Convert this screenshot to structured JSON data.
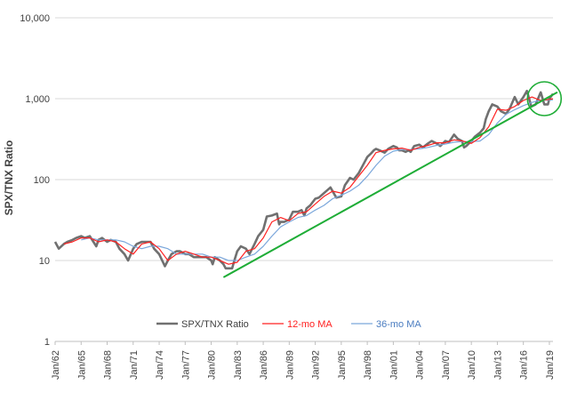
{
  "chart_data": {
    "type": "line",
    "ylabel": "SPX/TNX Ratio",
    "yscale": "log",
    "ylim": [
      1,
      10000
    ],
    "y_ticks": [
      {
        "value": 1,
        "label": "1"
      },
      {
        "value": 10,
        "label": "10"
      },
      {
        "value": 100,
        "label": "100"
      },
      {
        "value": 1000,
        "label": "1,000"
      },
      {
        "value": 10000,
        "label": "10,000"
      }
    ],
    "xlim": [
      "1962-01",
      "2019-06"
    ],
    "x_ticks": [
      "Jan/62",
      "Jan/65",
      "Jan/68",
      "Jan/71",
      "Jan/74",
      "Jan/77",
      "Jan/80",
      "Jan/83",
      "Jan/86",
      "Jan/89",
      "Jan/92",
      "Jan/95",
      "Jan/98",
      "Jan/01",
      "Jan/04",
      "Jan/07",
      "Jan/10",
      "Jan/13",
      "Jan/16",
      "Jan/19"
    ],
    "grid": "horizontal",
    "legend": "bottom-center",
    "series": [
      {
        "name": "SPX/TNX Ratio",
        "color": "#707070",
        "points": [
          [
            "1962-01",
            17
          ],
          [
            "1962-06",
            14
          ],
          [
            "1963-01",
            16
          ],
          [
            "1963-06",
            17
          ],
          [
            "1964-01",
            18
          ],
          [
            "1964-06",
            19
          ],
          [
            "1965-01",
            20
          ],
          [
            "1965-06",
            19
          ],
          [
            "1966-01",
            20
          ],
          [
            "1966-06",
            17
          ],
          [
            "1966-10",
            15
          ],
          [
            "1967-01",
            18
          ],
          [
            "1967-06",
            19
          ],
          [
            "1968-01",
            17
          ],
          [
            "1968-06",
            18
          ],
          [
            "1969-01",
            17
          ],
          [
            "1969-06",
            14
          ],
          [
            "1970-01",
            12
          ],
          [
            "1970-06",
            10
          ],
          [
            "1971-01",
            14
          ],
          [
            "1971-06",
            16
          ],
          [
            "1972-01",
            17
          ],
          [
            "1972-06",
            17
          ],
          [
            "1973-01",
            17
          ],
          [
            "1973-06",
            14
          ],
          [
            "1974-01",
            12
          ],
          [
            "1974-09",
            8.5
          ],
          [
            "1975-01",
            10
          ],
          [
            "1975-06",
            12
          ],
          [
            "1976-01",
            13
          ],
          [
            "1976-06",
            13
          ],
          [
            "1977-01",
            12
          ],
          [
            "1977-06",
            12
          ],
          [
            "1978-01",
            11
          ],
          [
            "1978-06",
            11
          ],
          [
            "1979-01",
            11
          ],
          [
            "1979-06",
            11
          ],
          [
            "1980-01",
            10
          ],
          [
            "1980-03",
            9
          ],
          [
            "1980-06",
            11
          ],
          [
            "1981-01",
            10
          ],
          [
            "1981-06",
            9
          ],
          [
            "1981-09",
            8
          ],
          [
            "1982-01",
            8
          ],
          [
            "1982-06",
            8
          ],
          [
            "1982-09",
            10
          ],
          [
            "1983-01",
            13
          ],
          [
            "1983-06",
            15
          ],
          [
            "1984-01",
            14
          ],
          [
            "1984-06",
            12
          ],
          [
            "1985-01",
            16
          ],
          [
            "1985-06",
            20
          ],
          [
            "1986-01",
            24
          ],
          [
            "1986-06",
            35
          ],
          [
            "1987-01",
            36
          ],
          [
            "1987-08",
            38
          ],
          [
            "1987-11",
            28
          ],
          [
            "1988-01",
            30
          ],
          [
            "1988-06",
            30
          ],
          [
            "1989-01",
            32
          ],
          [
            "1989-06",
            40
          ],
          [
            "1990-01",
            40
          ],
          [
            "1990-06",
            42
          ],
          [
            "1990-10",
            36
          ],
          [
            "1991-01",
            44
          ],
          [
            "1991-06",
            48
          ],
          [
            "1992-01",
            58
          ],
          [
            "1992-06",
            60
          ],
          [
            "1993-01",
            68
          ],
          [
            "1993-10",
            80
          ],
          [
            "1994-06",
            60
          ],
          [
            "1995-01",
            62
          ],
          [
            "1995-06",
            85
          ],
          [
            "1996-01",
            105
          ],
          [
            "1996-06",
            100
          ],
          [
            "1997-01",
            120
          ],
          [
            "1997-06",
            145
          ],
          [
            "1998-01",
            190
          ],
          [
            "1998-06",
            210
          ],
          [
            "1998-10",
            230
          ],
          [
            "1999-01",
            240
          ],
          [
            "1999-06",
            230
          ],
          [
            "2000-01",
            215
          ],
          [
            "2000-06",
            240
          ],
          [
            "2001-01",
            260
          ],
          [
            "2001-06",
            250
          ],
          [
            "2001-09",
            230
          ],
          [
            "2002-01",
            230
          ],
          [
            "2002-06",
            220
          ],
          [
            "2002-10",
            230
          ],
          [
            "2003-01",
            220
          ],
          [
            "2003-06",
            260
          ],
          [
            "2004-01",
            270
          ],
          [
            "2004-06",
            250
          ],
          [
            "2005-01",
            280
          ],
          [
            "2005-06",
            300
          ],
          [
            "2006-01",
            280
          ],
          [
            "2006-06",
            260
          ],
          [
            "2007-01",
            300
          ],
          [
            "2007-06",
            290
          ],
          [
            "2008-01",
            360
          ],
          [
            "2008-06",
            320
          ],
          [
            "2008-12",
            300
          ],
          [
            "2009-03",
            250
          ],
          [
            "2009-06",
            260
          ],
          [
            "2010-01",
            300
          ],
          [
            "2010-06",
            340
          ],
          [
            "2011-01",
            380
          ],
          [
            "2011-06",
            430
          ],
          [
            "2011-09",
            560
          ],
          [
            "2012-01",
            700
          ],
          [
            "2012-06",
            850
          ],
          [
            "2013-01",
            800
          ],
          [
            "2013-06",
            700
          ],
          [
            "2014-01",
            650
          ],
          [
            "2014-06",
            750
          ],
          [
            "2015-01",
            1050
          ],
          [
            "2015-06",
            850
          ],
          [
            "2016-01",
            1050
          ],
          [
            "2016-06",
            1250
          ],
          [
            "2016-12",
            800
          ],
          [
            "2017-06",
            850
          ],
          [
            "2018-01",
            1200
          ],
          [
            "2018-06",
            850
          ],
          [
            "2018-11",
            850
          ],
          [
            "2019-01",
            1000
          ],
          [
            "2019-06",
            1150
          ]
        ]
      },
      {
        "name": "12-mo MA",
        "color": "#ff2020",
        "points": [
          [
            "1963-01",
            16
          ],
          [
            "1964-01",
            17
          ],
          [
            "1965-01",
            19
          ],
          [
            "1966-01",
            19
          ],
          [
            "1967-01",
            17
          ],
          [
            "1968-01",
            18
          ],
          [
            "1969-01",
            17
          ],
          [
            "1970-01",
            14
          ],
          [
            "1971-01",
            12
          ],
          [
            "1972-01",
            16
          ],
          [
            "1973-01",
            17
          ],
          [
            "1974-01",
            14
          ],
          [
            "1975-01",
            10
          ],
          [
            "1976-01",
            12
          ],
          [
            "1977-01",
            13
          ],
          [
            "1978-01",
            12
          ],
          [
            "1979-01",
            11
          ],
          [
            "1980-01",
            11
          ],
          [
            "1981-01",
            10
          ],
          [
            "1982-01",
            9
          ],
          [
            "1983-01",
            9.5
          ],
          [
            "1984-01",
            13
          ],
          [
            "1985-01",
            14
          ],
          [
            "1986-01",
            19
          ],
          [
            "1987-01",
            30
          ],
          [
            "1988-01",
            34
          ],
          [
            "1989-01",
            31
          ],
          [
            "1990-01",
            38
          ],
          [
            "1991-01",
            40
          ],
          [
            "1992-01",
            50
          ],
          [
            "1993-01",
            62
          ],
          [
            "1994-01",
            72
          ],
          [
            "1995-01",
            68
          ],
          [
            "1996-01",
            80
          ],
          [
            "1997-01",
            110
          ],
          [
            "1998-01",
            150
          ],
          [
            "1999-01",
            215
          ],
          [
            "2000-01",
            230
          ],
          [
            "2001-01",
            240
          ],
          [
            "2002-01",
            245
          ],
          [
            "2003-01",
            230
          ],
          [
            "2004-01",
            250
          ],
          [
            "2005-01",
            265
          ],
          [
            "2006-01",
            285
          ],
          [
            "2007-01",
            285
          ],
          [
            "2008-01",
            310
          ],
          [
            "2009-01",
            300
          ],
          [
            "2010-01",
            280
          ],
          [
            "2011-01",
            330
          ],
          [
            "2012-01",
            450
          ],
          [
            "2013-01",
            740
          ],
          [
            "2014-01",
            720
          ],
          [
            "2015-01",
            800
          ],
          [
            "2016-01",
            950
          ],
          [
            "2017-01",
            1050
          ],
          [
            "2018-01",
            950
          ],
          [
            "2019-01",
            980
          ],
          [
            "2019-06",
            1000
          ]
        ]
      },
      {
        "name": "36-mo MA",
        "color": "#7ba7db",
        "points": [
          [
            "1965-01",
            18
          ],
          [
            "1966-01",
            19
          ],
          [
            "1967-01",
            18
          ],
          [
            "1968-01",
            18
          ],
          [
            "1969-01",
            18
          ],
          [
            "1970-01",
            17
          ],
          [
            "1971-01",
            15
          ],
          [
            "1972-01",
            14
          ],
          [
            "1973-01",
            15
          ],
          [
            "1974-01",
            15
          ],
          [
            "1975-01",
            14
          ],
          [
            "1976-01",
            12
          ],
          [
            "1977-01",
            12
          ],
          [
            "1978-01",
            12
          ],
          [
            "1979-01",
            12
          ],
          [
            "1980-01",
            11
          ],
          [
            "1981-01",
            11
          ],
          [
            "1982-01",
            10
          ],
          [
            "1983-01",
            10
          ],
          [
            "1984-01",
            11
          ],
          [
            "1985-01",
            12
          ],
          [
            "1986-01",
            15
          ],
          [
            "1987-01",
            20
          ],
          [
            "1988-01",
            26
          ],
          [
            "1989-01",
            30
          ],
          [
            "1990-01",
            34
          ],
          [
            "1991-01",
            36
          ],
          [
            "1992-01",
            42
          ],
          [
            "1993-01",
            48
          ],
          [
            "1994-01",
            58
          ],
          [
            "1995-01",
            64
          ],
          [
            "1996-01",
            72
          ],
          [
            "1997-01",
            85
          ],
          [
            "1998-01",
            110
          ],
          [
            "1999-01",
            150
          ],
          [
            "2000-01",
            195
          ],
          [
            "2001-01",
            225
          ],
          [
            "2002-01",
            235
          ],
          [
            "2003-01",
            235
          ],
          [
            "2004-01",
            240
          ],
          [
            "2005-01",
            250
          ],
          [
            "2006-01",
            265
          ],
          [
            "2007-01",
            275
          ],
          [
            "2008-01",
            290
          ],
          [
            "2009-01",
            295
          ],
          [
            "2010-01",
            295
          ],
          [
            "2011-01",
            300
          ],
          [
            "2012-01",
            360
          ],
          [
            "2013-01",
            500
          ],
          [
            "2014-01",
            640
          ],
          [
            "2015-01",
            730
          ],
          [
            "2016-01",
            820
          ],
          [
            "2017-01",
            900
          ],
          [
            "2018-01",
            960
          ],
          [
            "2019-01",
            960
          ],
          [
            "2019-06",
            970
          ]
        ]
      }
    ],
    "annotations": [
      {
        "type": "trendline",
        "color": "#1fad37",
        "from": [
          "1981-06",
          6.2
        ],
        "to": [
          "2019-12",
          1200
        ]
      },
      {
        "type": "circle",
        "color": "#1fad37",
        "center": [
          "2018-06",
          1000
        ]
      }
    ]
  }
}
